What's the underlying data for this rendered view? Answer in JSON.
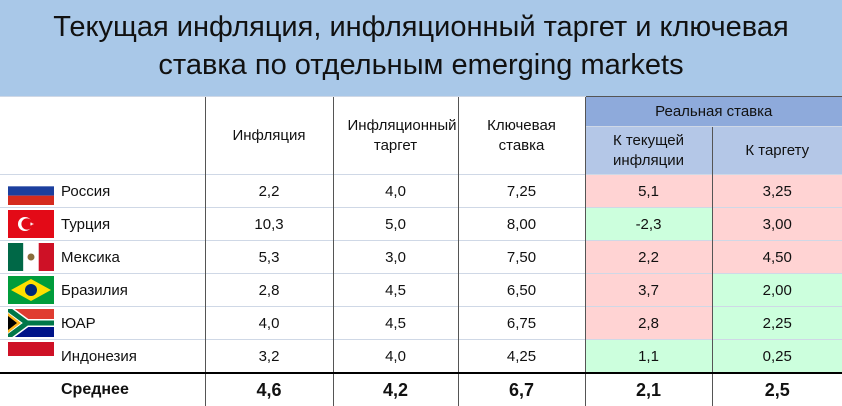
{
  "header": {
    "title_lines": [
      "Текущая инфляция, инфляционный таргет и ключевая",
      "ставка по отдельным emerging markets"
    ]
  },
  "table": {
    "columns": [
      "Инфляция",
      "Инфляционный таргет",
      "Ключевая ставка"
    ],
    "group_header": "Реальная ставка",
    "sub_columns": [
      "К текущей инфляции",
      "К таргету"
    ],
    "rows": [
      [
        "Россия",
        "2,2",
        "4,0",
        "7,25",
        "5,1",
        "3,25"
      ],
      [
        "Турция",
        "10,3",
        "5,0",
        "8,00",
        "-2,3",
        "3,00"
      ],
      [
        "Мексика",
        "5,3",
        "3,0",
        "7,50",
        "2,2",
        "4,50"
      ],
      [
        "Бразилия",
        "2,8",
        "4,5",
        "6,50",
        "3,7",
        "2,00"
      ],
      [
        "ЮАР",
        "4,0",
        "4,5",
        "6,75",
        "2,8",
        "2,25"
      ],
      [
        "Индонезия",
        "3,2",
        "4,0",
        "4,25",
        "1,1",
        "0,25"
      ]
    ],
    "average": [
      "Среднее",
      "4,6",
      "4,2",
      "6,7",
      "2,1",
      "2,5"
    ]
  }
}
